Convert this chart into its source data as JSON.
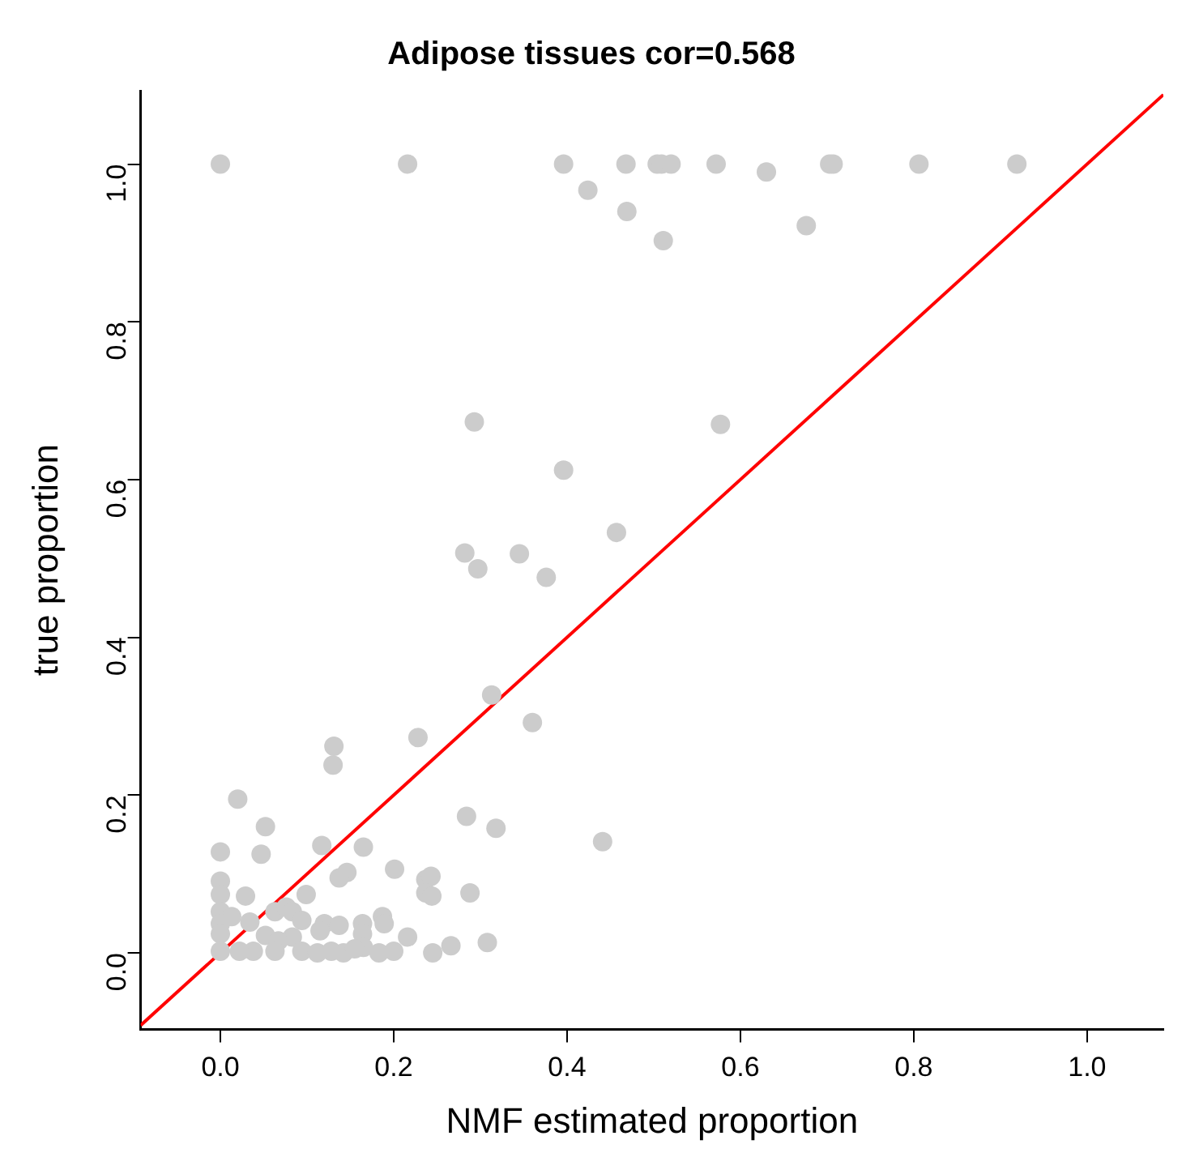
{
  "chart_data": {
    "type": "scatter",
    "title": "Adipose tissues cor=0.568",
    "xlabel": "NMF estimated proportion",
    "ylabel": "true proportion",
    "xlim": [
      -0.092,
      1.088
    ],
    "ylim": [
      -0.097,
      1.093
    ],
    "xticks": [
      {
        "value": 0,
        "label": "0.0"
      },
      {
        "value": 0.2,
        "label": "0.2"
      },
      {
        "value": 0.4,
        "label": "0.4"
      },
      {
        "value": 0.6,
        "label": "0.6"
      },
      {
        "value": 0.8,
        "label": "0.8"
      },
      {
        "value": 1,
        "label": "1.0"
      }
    ],
    "yticks": [
      {
        "value": 0,
        "label": "0.0"
      },
      {
        "value": 0.2,
        "label": "0.2"
      },
      {
        "value": 0.4,
        "label": "0.4"
      },
      {
        "value": 0.6,
        "label": "0.6"
      },
      {
        "value": 0.8,
        "label": "0.8"
      },
      {
        "value": 1,
        "label": "1.0"
      }
    ],
    "grid": false,
    "legend": false,
    "series": [
      {
        "marker": "circle",
        "color": "#cccccc",
        "x": [
          0,
          0.216,
          0.396,
          0.468,
          0.504,
          0.509,
          0.52,
          0.572,
          0.63,
          0.703,
          0.707,
          0.806,
          0.919,
          0.424,
          0.469,
          0.511,
          0.676,
          0.293,
          0.577,
          0.396,
          0.457,
          0.282,
          0.297,
          0.345,
          0.376,
          0.313,
          0.36,
          0.228,
          0.284,
          0.318,
          0.441,
          0.131,
          0.13,
          0.02,
          0.052,
          0,
          0.047,
          0.117,
          0.165,
          0.146,
          0.137,
          0.201,
          0.237,
          0.243,
          0.237,
          0.244,
          0.288,
          0,
          0.029,
          0,
          0.099,
          0,
          0.013,
          0,
          0,
          0,
          0.034,
          0.052,
          0.063,
          0.076,
          0.083,
          0.094,
          0.083,
          0.067,
          0.063,
          0.038,
          0.022,
          0.094,
          0.112,
          0.12,
          0.137,
          0.115,
          0.128,
          0.142,
          0.164,
          0.164,
          0.165,
          0.155,
          0.187,
          0.189,
          0.183,
          0.2,
          0.216,
          0.245,
          0.266,
          0.308
        ],
        "values": [
          1,
          1,
          1,
          1,
          1,
          1,
          1,
          1,
          0.99,
          1,
          1,
          1,
          1,
          0.967,
          0.94,
          0.903,
          0.922,
          0.673,
          0.67,
          0.612,
          0.533,
          0.507,
          0.487,
          0.506,
          0.476,
          0.327,
          0.292,
          0.273,
          0.173,
          0.158,
          0.141,
          0.262,
          0.238,
          0.195,
          0.16,
          0.128,
          0.125,
          0.136,
          0.134,
          0.102,
          0.095,
          0.106,
          0.093,
          0.097,
          0.076,
          0.072,
          0.076,
          0.091,
          0.072,
          0.074,
          0.074,
          0.052,
          0.046,
          0.037,
          0.024,
          0.002,
          0.039,
          0.022,
          0.052,
          0.058,
          0.052,
          0.041,
          0.02,
          0.015,
          0.002,
          0.002,
          0.002,
          0.002,
          0,
          0.037,
          0.035,
          0.028,
          0.002,
          0,
          0.037,
          0.024,
          0.007,
          0.005,
          0.046,
          0.037,
          0,
          0.002,
          0.02,
          0,
          0.009,
          0.013
        ]
      },
      {
        "type": "line",
        "marker": "none",
        "color": "#ff0000",
        "x": [
          -0.092,
          1.088
        ],
        "values": [
          -0.092,
          1.088
        ]
      }
    ]
  }
}
